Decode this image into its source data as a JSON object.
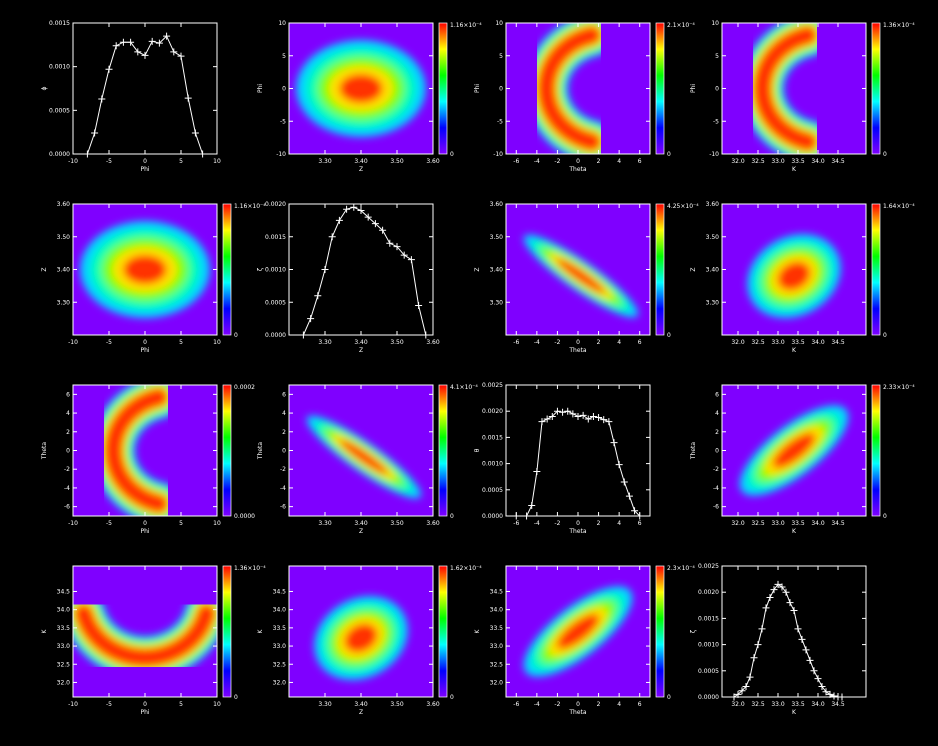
{
  "figure": {
    "background": "#000000",
    "foreground": "#ffffff",
    "heatmap_colormap": [
      "#7f00ff",
      "#0000ff",
      "#00ffff",
      "#00ff00",
      "#ffff00",
      "#ff0000"
    ],
    "background_field_color": "#7f00ff"
  },
  "chart_data": [
    {
      "id": "p11",
      "type": "line",
      "markers": "plus",
      "xlabel": "Phi",
      "ylabel": "ϕ",
      "xlim": [
        -10,
        10
      ],
      "ylim": [
        0,
        0.0015
      ],
      "xticks": [
        "-10",
        "-5",
        "0",
        "5",
        "10"
      ],
      "yticks": [
        "0.0000",
        "0.0005",
        "0.0010",
        "0.0015"
      ],
      "x": [
        -8,
        -7,
        -6,
        -5,
        -4,
        -3,
        -2,
        -1,
        0,
        1,
        2,
        3,
        4,
        5,
        6,
        7,
        8
      ],
      "y": [
        0,
        0.00024,
        0.00063,
        0.00097,
        0.00124,
        0.00128,
        0.00128,
        0.00117,
        0.00113,
        0.00129,
        0.00127,
        0.00135,
        0.00117,
        0.00112,
        0.00064,
        0.00024,
        0
      ]
    },
    {
      "id": "p12",
      "type": "heatmap",
      "shape": "rect",
      "xlabel": "Z",
      "ylabel": "Phi",
      "xlim": [
        3.2,
        3.6
      ],
      "ylim": [
        -10,
        10
      ],
      "xticks": [
        "3.30",
        "3.40",
        "3.50",
        "3.60"
      ],
      "yticks": [
        "-10",
        "-5",
        "0",
        "5",
        "10"
      ],
      "colorbar": {
        "min_label": "0",
        "max_label": "1.16×10⁻⁴"
      }
    },
    {
      "id": "p13",
      "type": "heatmap",
      "shape": "crescent",
      "xlabel": "Theta",
      "ylabel": "Phi",
      "xlim": [
        -7,
        7
      ],
      "ylim": [
        -10,
        10
      ],
      "xticks": [
        "-6",
        "-4",
        "-2",
        "0",
        "2",
        "4",
        "6"
      ],
      "yticks": [
        "-10",
        "-5",
        "0",
        "5",
        "10"
      ],
      "colorbar": {
        "min_label": "0",
        "max_label": "2.1×10⁻⁴"
      }
    },
    {
      "id": "p14",
      "type": "heatmap",
      "shape": "crescent",
      "xlabel": "K",
      "ylabel": "Phi",
      "xlim": [
        31.6,
        35.2
      ],
      "ylim": [
        -10,
        10
      ],
      "xticks": [
        "32.0",
        "32.5",
        "33.0",
        "33.5",
        "34.0",
        "34.5"
      ],
      "yticks": [
        "-10",
        "-5",
        "0",
        "5",
        "10"
      ],
      "colorbar": {
        "min_label": "0",
        "max_label": "1.36×10⁻⁴"
      }
    },
    {
      "id": "p21",
      "type": "heatmap",
      "shape": "rect",
      "xlabel": "Phi",
      "ylabel": "Z",
      "xlim": [
        -10,
        10
      ],
      "ylim": [
        3.2,
        3.6
      ],
      "xticks": [
        "-10",
        "-5",
        "0",
        "5",
        "10"
      ],
      "yticks": [
        "3.30",
        "3.40",
        "3.50",
        "3.60"
      ],
      "colorbar": {
        "min_label": "0",
        "max_label": "1.16×10⁻⁴"
      }
    },
    {
      "id": "p22",
      "type": "line",
      "markers": "plus",
      "xlabel": "Z",
      "ylabel": "ζ",
      "xlim": [
        3.2,
        3.6
      ],
      "ylim": [
        0,
        0.002
      ],
      "xticks": [
        "3.30",
        "3.40",
        "3.50",
        "3.60"
      ],
      "yticks": [
        "0.0000",
        "0.0005",
        "0.0010",
        "0.0015",
        "0.0020"
      ],
      "x": [
        3.24,
        3.26,
        3.28,
        3.3,
        3.32,
        3.34,
        3.36,
        3.38,
        3.4,
        3.42,
        3.44,
        3.46,
        3.48,
        3.5,
        3.52,
        3.54,
        3.56,
        3.58
      ],
      "y": [
        0,
        0.00025,
        0.0006,
        0.001,
        0.0015,
        0.00175,
        0.00192,
        0.00195,
        0.0019,
        0.0018,
        0.0017,
        0.0016,
        0.0014,
        0.00135,
        0.00122,
        0.00115,
        0.00045,
        0
      ]
    },
    {
      "id": "p23",
      "type": "heatmap",
      "shape": "diag-down",
      "xlabel": "Theta",
      "ylabel": "Z",
      "xlim": [
        -7,
        7
      ],
      "ylim": [
        3.2,
        3.6
      ],
      "xticks": [
        "-6",
        "-4",
        "-2",
        "0",
        "2",
        "4",
        "6"
      ],
      "yticks": [
        "3.30",
        "3.40",
        "3.50",
        "3.60"
      ],
      "colorbar": {
        "min_label": "0",
        "max_label": "4.25×10⁻⁴"
      }
    },
    {
      "id": "p24",
      "type": "heatmap",
      "shape": "blob",
      "xlabel": "K",
      "ylabel": "Z",
      "xlim": [
        31.6,
        35.2
      ],
      "ylim": [
        3.2,
        3.6
      ],
      "xticks": [
        "32.0",
        "32.5",
        "33.0",
        "33.5",
        "34.0",
        "34.5"
      ],
      "yticks": [
        "3.30",
        "3.40",
        "3.50",
        "3.60"
      ],
      "colorbar": {
        "min_label": "0",
        "max_label": "1.64×10⁻⁴"
      }
    },
    {
      "id": "p31",
      "type": "heatmap",
      "shape": "crescent",
      "xlabel": "Phi",
      "ylabel": "Theta",
      "xlim": [
        -10,
        10
      ],
      "ylim": [
        -7,
        7
      ],
      "xticks": [
        "-10",
        "-5",
        "0",
        "5",
        "10"
      ],
      "yticks": [
        "-6",
        "-4",
        "-2",
        "0",
        "2",
        "4",
        "6"
      ],
      "colorbar": {
        "min_label": "0.0000",
        "max_label": "0.0002"
      }
    },
    {
      "id": "p32",
      "type": "heatmap",
      "shape": "diag-down",
      "xlabel": "Z",
      "ylabel": "Theta",
      "xlim": [
        3.2,
        3.6
      ],
      "ylim": [
        -7,
        7
      ],
      "xticks": [
        "3.30",
        "3.40",
        "3.50",
        "3.60"
      ],
      "yticks": [
        "-6",
        "-4",
        "-2",
        "0",
        "2",
        "4",
        "6"
      ],
      "colorbar": {
        "min_label": "0",
        "max_label": "4.1×10⁻⁴"
      }
    },
    {
      "id": "p33",
      "type": "line",
      "markers": "plus",
      "xlabel": "Theta",
      "ylabel": "θ",
      "xlim": [
        -7,
        7
      ],
      "ylim": [
        0,
        0.0025
      ],
      "xticks": [
        "-6",
        "-4",
        "-2",
        "0",
        "2",
        "4",
        "6"
      ],
      "yticks": [
        "0.0000",
        "0.0005",
        "0.0010",
        "0.0015",
        "0.0020",
        "0.0025"
      ],
      "x": [
        -6,
        -5,
        -4.5,
        -4,
        -3.5,
        -3,
        -2.5,
        -2,
        -1.5,
        -1,
        -0.5,
        0,
        0.5,
        1,
        1.5,
        2,
        2.5,
        3,
        3.5,
        4,
        4.5,
        5,
        5.5,
        6
      ],
      "y": [
        0,
        0,
        0.0002,
        0.00085,
        0.0018,
        0.00185,
        0.0019,
        0.002,
        0.00198,
        0.002,
        0.00195,
        0.0019,
        0.00192,
        0.00185,
        0.0019,
        0.00188,
        0.00184,
        0.0018,
        0.0014,
        0.00098,
        0.00065,
        0.00038,
        0.0001,
        0
      ]
    },
    {
      "id": "p34",
      "type": "heatmap",
      "shape": "diag-up",
      "xlabel": "K",
      "ylabel": "Theta",
      "xlim": [
        31.6,
        35.2
      ],
      "ylim": [
        -7,
        7
      ],
      "xticks": [
        "32.0",
        "32.5",
        "33.0",
        "33.5",
        "34.0",
        "34.5"
      ],
      "yticks": [
        "-6",
        "-4",
        "-2",
        "0",
        "2",
        "4",
        "6"
      ],
      "colorbar": {
        "min_label": "0",
        "max_label": "2.33×10⁻⁴"
      }
    },
    {
      "id": "p41",
      "type": "heatmap",
      "shape": "crescent-up",
      "xlabel": "Phi",
      "ylabel": "K",
      "xlim": [
        -10,
        10
      ],
      "ylim": [
        31.6,
        35.2
      ],
      "xticks": [
        "-10",
        "-5",
        "0",
        "5",
        "10"
      ],
      "yticks": [
        "32.0",
        "32.5",
        "33.0",
        "33.5",
        "34.0",
        "34.5"
      ],
      "colorbar": {
        "min_label": "0",
        "max_label": "1.36×10⁻⁴"
      }
    },
    {
      "id": "p42",
      "type": "heatmap",
      "shape": "blob",
      "xlabel": "Z",
      "ylabel": "K",
      "xlim": [
        3.2,
        3.6
      ],
      "ylim": [
        31.6,
        35.2
      ],
      "xticks": [
        "3.30",
        "3.40",
        "3.50",
        "3.60"
      ],
      "yticks": [
        "32.0",
        "32.5",
        "33.0",
        "33.5",
        "34.0",
        "34.5"
      ],
      "colorbar": {
        "min_label": "0",
        "max_label": "1.62×10⁻⁴"
      }
    },
    {
      "id": "p43",
      "type": "heatmap",
      "shape": "diag-up",
      "xlabel": "Theta",
      "ylabel": "K",
      "xlim": [
        -7,
        7
      ],
      "ylim": [
        31.6,
        35.2
      ],
      "xticks": [
        "-6",
        "-4",
        "-2",
        "0",
        "2",
        "4",
        "6"
      ],
      "yticks": [
        "32.0",
        "32.5",
        "33.0",
        "33.5",
        "34.0",
        "34.5"
      ],
      "colorbar": {
        "min_label": "0",
        "max_label": "2.3×10⁻⁴"
      }
    },
    {
      "id": "p44",
      "type": "line",
      "markers": "plus",
      "xlabel": "K",
      "ylabel": "ζ",
      "xlim": [
        31.6,
        35.2
      ],
      "ylim": [
        0,
        0.0025
      ],
      "xticks": [
        "32.0",
        "32.5",
        "33.0",
        "33.5",
        "34.0",
        "34.5"
      ],
      "yticks": [
        "0.0000",
        "0.0005",
        "0.0010",
        "0.0015",
        "0.0020",
        "0.0025"
      ],
      "x": [
        31.9,
        32.0,
        32.1,
        32.2,
        32.3,
        32.4,
        32.5,
        32.6,
        32.7,
        32.8,
        32.9,
        33.0,
        33.1,
        33.2,
        33.3,
        33.4,
        33.5,
        33.6,
        33.7,
        33.8,
        33.9,
        34.0,
        34.1,
        34.2,
        34.3,
        34.4,
        34.5,
        34.6
      ],
      "y": [
        0,
        5e-05,
        0.00012,
        0.0002,
        0.00038,
        0.00075,
        0.001,
        0.0013,
        0.0017,
        0.0019,
        0.00205,
        0.00215,
        0.0021,
        0.002,
        0.0018,
        0.00165,
        0.0013,
        0.0011,
        0.0009,
        0.0007,
        0.0005,
        0.00035,
        0.0002,
        0.0001,
        5e-05,
        2e-05,
        0,
        0
      ]
    }
  ]
}
